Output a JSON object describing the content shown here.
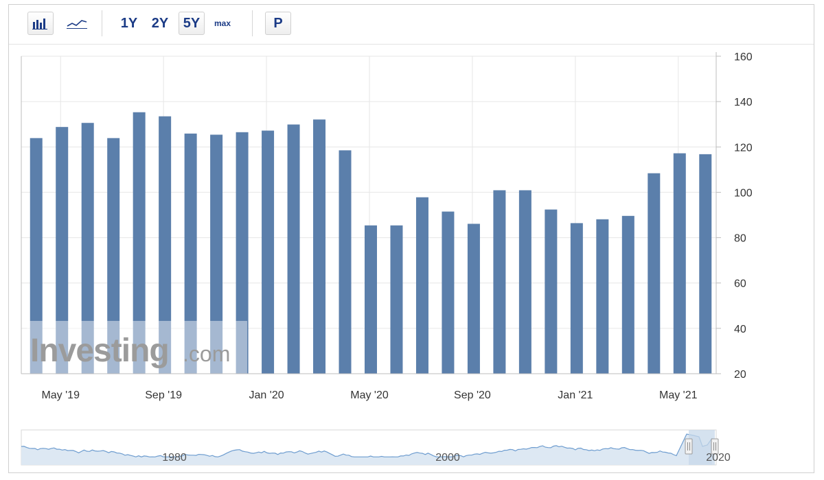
{
  "toolbar": {
    "bar_chart_icon": "bar-chart-icon",
    "line_chart_icon": "line-chart-icon",
    "range_buttons": [
      "1Y",
      "2Y",
      "5Y",
      "max"
    ],
    "active_range": "5Y",
    "p_label": "P"
  },
  "colors": {
    "bar": "#5b7fab",
    "navigator_line": "#6d9ccf",
    "navigator_fill": "#dde8f3",
    "selection": "#c7d8ea"
  },
  "chart_data": {
    "type": "bar",
    "categories": [
      "Apr '19",
      "May '19",
      "Jun '19",
      "Jul '19",
      "Aug '19",
      "Sep '19",
      "Oct '19",
      "Nov '19",
      "Dec '19",
      "Jan '20",
      "Feb '20",
      "Mar '20",
      "Apr '20",
      "May '20",
      "Jun '20",
      "Jul '20",
      "Aug '20",
      "Sep '20",
      "Oct '20",
      "Nov '20",
      "Dec '20",
      "Jan '21",
      "Feb '21",
      "Mar '21",
      "Apr '21",
      "May '21",
      "Jun '21"
    ],
    "values": [
      123.9,
      128.8,
      130.6,
      123.9,
      135.3,
      133.5,
      125.9,
      125.4,
      126.5,
      127.2,
      129.9,
      132.1,
      118.5,
      85.4,
      85.4,
      97.8,
      91.5,
      86.1,
      100.9,
      100.9,
      92.4,
      86.4,
      88.1,
      89.6,
      108.4,
      117.2,
      116.8
    ],
    "xtick_labels": [
      "May '19",
      "Sep '19",
      "Jan '20",
      "May '20",
      "Sep '20",
      "Jan '21",
      "May '21"
    ],
    "xtick_indices": [
      1,
      5,
      9,
      13,
      17,
      21,
      25
    ],
    "ylim": [
      20,
      160
    ],
    "yticks": [
      20,
      40,
      60,
      80,
      100,
      120,
      140,
      160
    ],
    "grid": true,
    "navigator": {
      "labels": [
        "1980",
        "2000",
        "2020"
      ]
    }
  },
  "watermark": {
    "main": "Investing",
    "sub": ".com"
  }
}
